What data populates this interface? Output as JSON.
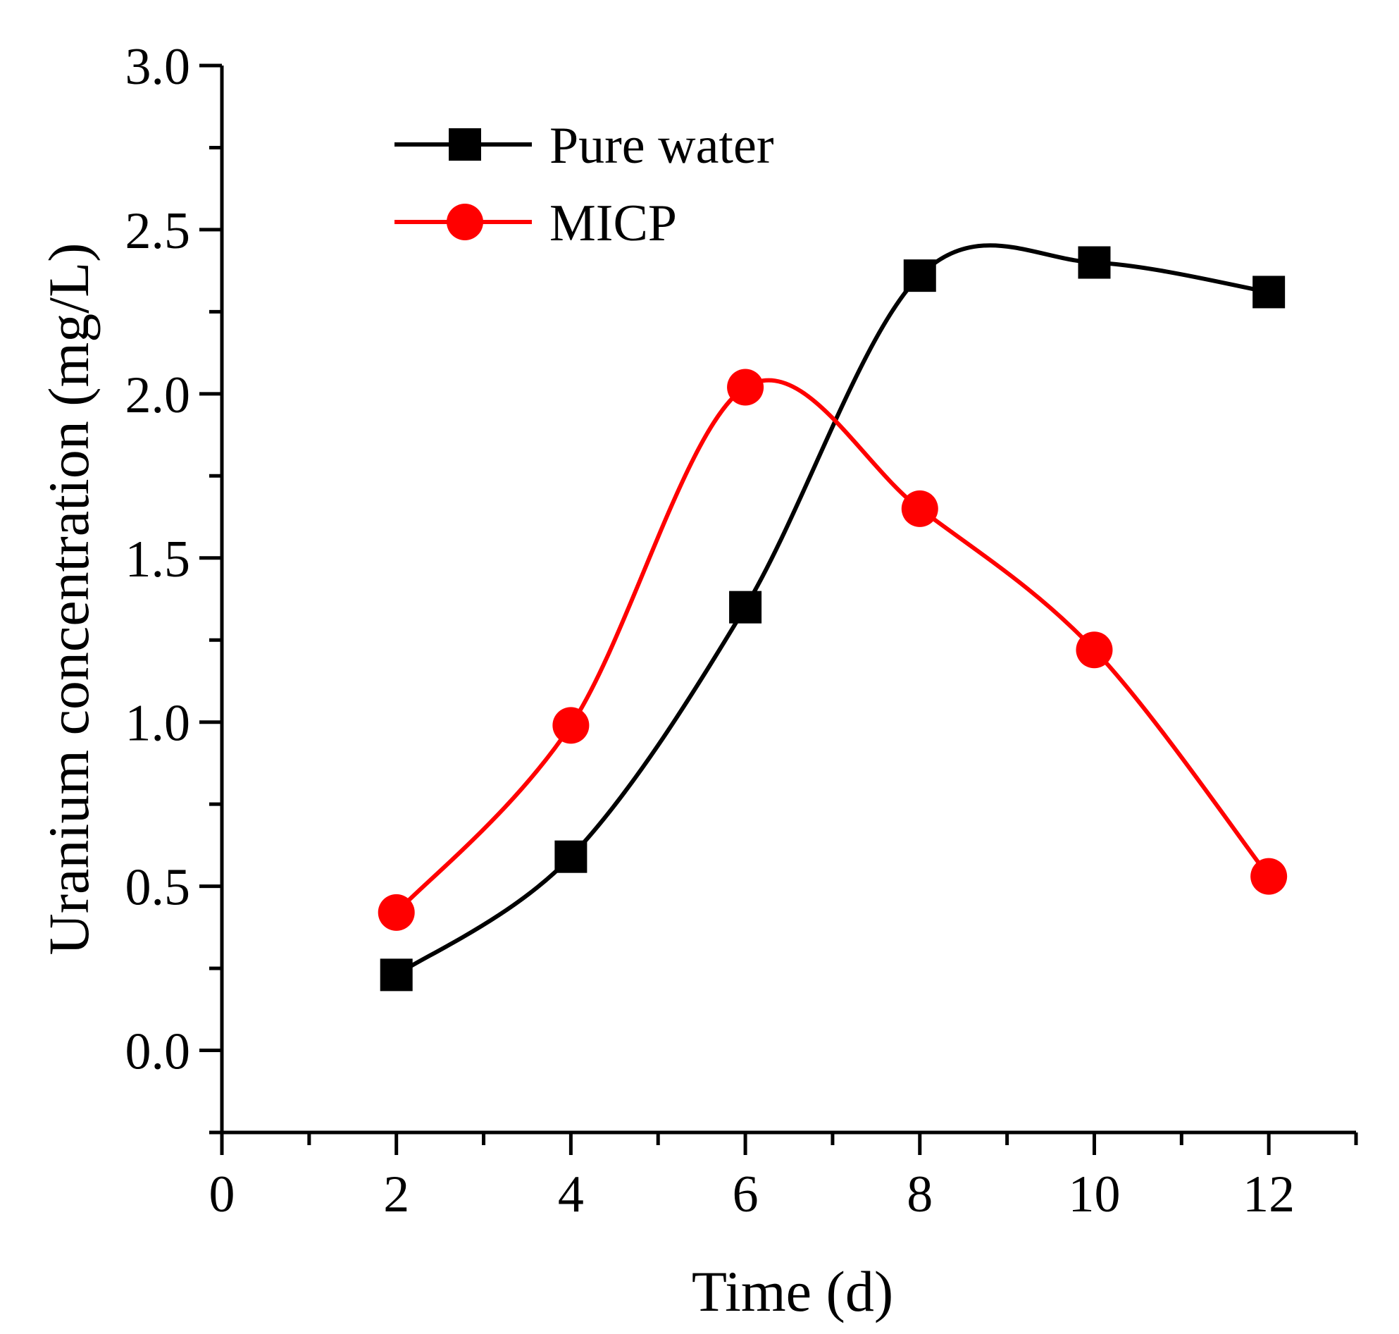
{
  "chart_data": {
    "type": "line",
    "title": "",
    "xlabel": "Time (d)",
    "ylabel": "Uranium concentration (mg/L)",
    "xlim": [
      0,
      13
    ],
    "ylim": [
      -0.25,
      3.0
    ],
    "xticks": [
      0,
      2,
      4,
      6,
      8,
      10,
      12
    ],
    "xtick_labels": [
      "0",
      "2",
      "4",
      "6",
      "8",
      "10",
      "12"
    ],
    "yticks": [
      0.0,
      0.5,
      1.0,
      1.5,
      2.0,
      2.5,
      3.0
    ],
    "ytick_labels": [
      "0.0",
      "0.5",
      "1.0",
      "1.5",
      "2.0",
      "2.5",
      "3.0"
    ],
    "grid": false,
    "legend_position": "top-left",
    "x": [
      2,
      4,
      6,
      8,
      10,
      12
    ],
    "series": [
      {
        "name": "Pure water",
        "color": "#000000",
        "marker": "square",
        "values": [
          0.23,
          0.59,
          1.35,
          2.36,
          2.4,
          2.31
        ]
      },
      {
        "name": "MICP",
        "color": "#ff0000",
        "marker": "circle",
        "values": [
          0.42,
          0.99,
          2.02,
          1.65,
          1.22,
          0.53
        ]
      }
    ]
  }
}
